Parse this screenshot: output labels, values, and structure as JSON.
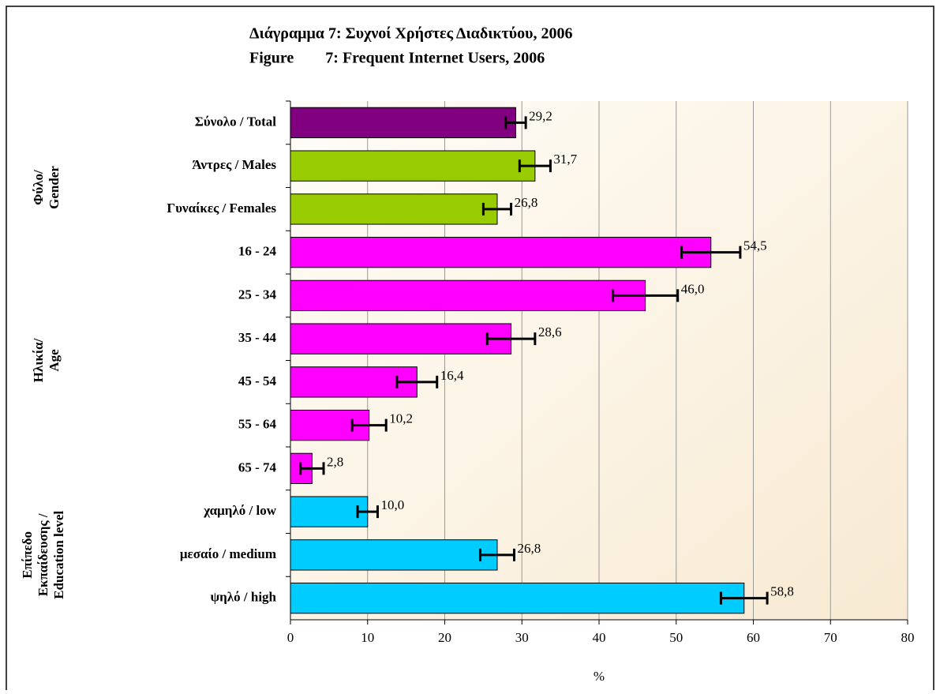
{
  "chart_data": {
    "type": "hbar",
    "title": [
      "Διάγραμμα 7: Συχνοί Χρήστες Διαδικτύου, 2006",
      "Figure        7: Frequent Internet Users, 2006"
    ],
    "categories": [
      "Σύνολο / Total",
      "Άντρες / Males",
      "Γυναίκες / Females",
      "16 - 24",
      "25 - 34",
      "35 - 44",
      "45 - 54",
      "55 - 64",
      "65 - 74",
      "χαμηλό / low",
      "μεσαίο / medium",
      "ψηλό / high"
    ],
    "values": [
      29.2,
      31.7,
      26.8,
      54.5,
      46.0,
      28.6,
      16.4,
      10.2,
      2.8,
      10.0,
      26.8,
      58.8
    ],
    "value_labels": [
      "29,2",
      "31,7",
      "26,8",
      "54,5",
      "46,0",
      "28,6",
      "16,4",
      "10,2",
      "2,8",
      "10,0",
      "26,8",
      "58,8"
    ],
    "errors": [
      1.3,
      2.0,
      1.8,
      3.8,
      4.2,
      3.1,
      2.6,
      2.2,
      1.5,
      1.3,
      2.2,
      3.0
    ],
    "colors": [
      "#800080",
      "#99cc00",
      "#99cc00",
      "#ff00ff",
      "#ff00ff",
      "#ff00ff",
      "#ff00ff",
      "#ff00ff",
      "#ff00ff",
      "#00ccff",
      "#00ccff",
      "#00ccff"
    ],
    "groups": [
      {
        "lines": [
          "Φύλο/",
          "Gender"
        ],
        "start": 1,
        "end": 2
      },
      {
        "lines": [
          "Ηλικία/",
          "Age"
        ],
        "start": 3,
        "end": 8
      },
      {
        "lines": [
          "Επίπεδο",
          "Εκπαίδευσης /",
          "Education level"
        ],
        "start": 9,
        "end": 11
      }
    ],
    "xlabel": "%",
    "xlim": [
      0,
      80
    ],
    "xticks": [
      0,
      10,
      20,
      30,
      40,
      50,
      60,
      70,
      80
    ],
    "grid": true
  }
}
